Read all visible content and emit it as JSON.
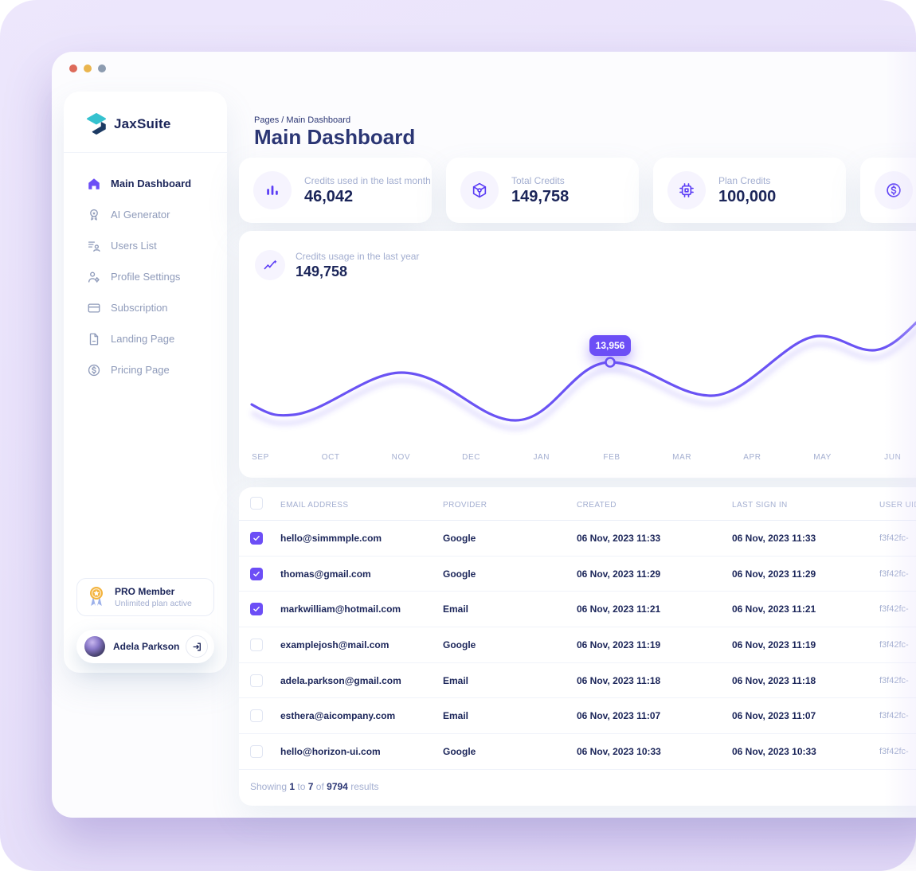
{
  "colors": {
    "accent": "#6C4EF6",
    "line": "#6A53F4",
    "navy": "#1B2559",
    "breadcrumb_navy": "#2B3674",
    "text_gray": "#A3AED0",
    "sidebar_inactive": "#8F9BBA",
    "lavender_1": "#EDE7FC",
    "lavender_2": "#E3DBF8",
    "icon_bg": "#F6F4FE",
    "gold": "#F3B33D",
    "ribbon_blue": "#9DB1EA",
    "border": "#E9EDF7",
    "traffic_red": "#DD6A5A",
    "traffic_yellow": "#EAB54E",
    "traffic_gray": "#8D9CB0",
    "logo_teal": "#35C2CF",
    "logo_navy": "#1C3A63"
  },
  "sidebar": {
    "logo_text": "JaxSuite",
    "items": [
      {
        "label": "Main Dashboard",
        "icon": "home-icon",
        "active": true
      },
      {
        "label": "AI Generator",
        "icon": "medal-icon",
        "active": false
      },
      {
        "label": "Users List",
        "icon": "users-list-icon",
        "active": false
      },
      {
        "label": "Profile Settings",
        "icon": "user-gear-icon",
        "active": false
      },
      {
        "label": "Subscription",
        "icon": "card-icon",
        "active": false
      },
      {
        "label": "Landing Page",
        "icon": "document-icon",
        "active": false
      },
      {
        "label": "Pricing Page",
        "icon": "dollar-circle-icon",
        "active": false
      }
    ],
    "pro_card": {
      "title": "PRO Member",
      "subtitle": "Unlimited plan active",
      "icon": "medal-ribbon-icon"
    },
    "user": {
      "name": "Adela Parkson",
      "logout_icon": "logout-icon"
    }
  },
  "header": {
    "breadcrumb": "Pages / Main Dashboard",
    "title": "Main Dashboard"
  },
  "stat_cards": [
    {
      "label": "Credits used in the last month",
      "value": "46,042",
      "icon": "bar-chart-icon"
    },
    {
      "label": "Total Credits",
      "value": "149,758",
      "icon": "cube-icon"
    },
    {
      "label": "Plan Credits",
      "value": "100,000",
      "icon": "chip-icon"
    },
    {
      "icon": "dollar-circle-icon"
    }
  ],
  "chart_card": {
    "label": "Credits usage in the last year",
    "value": "149,758",
    "icon": "trend-up-icon",
    "tooltip": "13,956"
  },
  "chart_data": {
    "type": "line",
    "title": "Credits usage in the last year",
    "x": [
      "SEP",
      "OCT",
      "NOV",
      "DEC",
      "JAN",
      "FEB",
      "MAR",
      "APR",
      "MAY",
      "JUN"
    ],
    "series": [
      {
        "name": "Credits usage",
        "values": [
          9600,
          9200,
          12700,
          10800,
          8900,
          13956,
          12100,
          10200,
          14800,
          16900
        ]
      }
    ],
    "highlighted_point": {
      "month": "FEB",
      "value": 13956,
      "label": "13,956"
    },
    "values_estimated_from_curve": true,
    "grid": false,
    "legend": "none"
  },
  "table": {
    "headers": [
      "EMAIL ADDRESS",
      "PROVIDER",
      "CREATED",
      "LAST SIGN IN",
      "USER UID"
    ],
    "rows": [
      {
        "checked": true,
        "email": "hello@simmmple.com",
        "provider": "Google",
        "created": "06 Nov, 2023 11:33",
        "last_sign_in": "06 Nov, 2023 11:33",
        "uid": "f3f42fc-"
      },
      {
        "checked": true,
        "email": "thomas@gmail.com",
        "provider": "Google",
        "created": "06 Nov, 2023 11:29",
        "last_sign_in": "06 Nov, 2023 11:29",
        "uid": "f3f42fc-"
      },
      {
        "checked": true,
        "email": "markwilliam@hotmail.com",
        "provider": "Email",
        "created": "06 Nov, 2023 11:21",
        "last_sign_in": "06 Nov, 2023 11:21",
        "uid": "f3f42fc-"
      },
      {
        "checked": false,
        "email": "examplejosh@mail.com",
        "provider": "Google",
        "created": "06 Nov, 2023 11:19",
        "last_sign_in": "06 Nov, 2023 11:19",
        "uid": "f3f42fc-"
      },
      {
        "checked": false,
        "email": "adela.parkson@gmail.com",
        "provider": "Email",
        "created": "06 Nov, 2023 11:18",
        "last_sign_in": "06 Nov, 2023 11:18",
        "uid": "f3f42fc-"
      },
      {
        "checked": false,
        "email": "esthera@aicompany.com",
        "provider": "Email",
        "created": "06 Nov, 2023 11:07",
        "last_sign_in": "06 Nov, 2023 11:07",
        "uid": "f3f42fc-"
      },
      {
        "checked": false,
        "email": "hello@horizon-ui.com",
        "provider": "Google",
        "created": "06 Nov, 2023 10:33",
        "last_sign_in": "06 Nov, 2023 10:33",
        "uid": "f3f42fc-"
      }
    ],
    "footer": {
      "prefix": "Showing",
      "from": "1",
      "mid": "to",
      "to": "7",
      "of": "of",
      "total": "9794",
      "suffix": "results"
    }
  }
}
